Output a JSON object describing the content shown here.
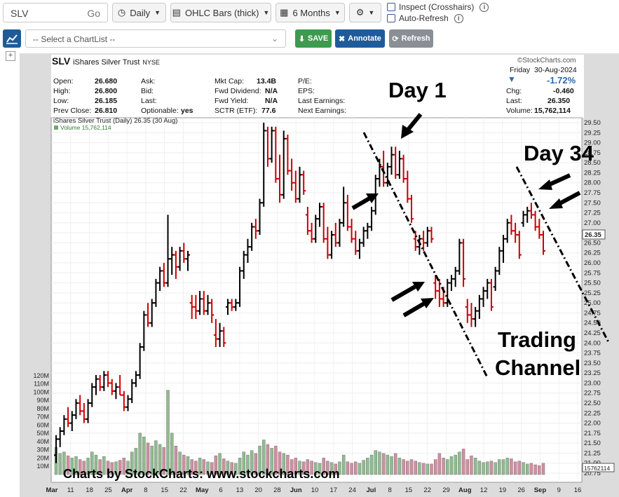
{
  "toolbar": {
    "ticker": "SLV",
    "go": "Go",
    "period": "Daily",
    "chart_type": "OHLC Bars (thick)",
    "range": "6 Months",
    "inspect": "Inspect (Crosshairs)",
    "auto_refresh": "Auto-Refresh",
    "chartlist_placeholder": "-- Select a ChartList --",
    "save": "SAVE",
    "annotate": "Annotate",
    "refresh": "Refresh"
  },
  "header": {
    "symbol": "SLV",
    "name": "iShares Silver Trust",
    "exchange": "NYSE",
    "watermark": "©StockCharts.com",
    "day": "Friday",
    "date": "30-Aug-2024",
    "pct": "-1.72%",
    "chg_label": "Chg:",
    "chg": "-0.460",
    "last_label": "Last:",
    "last": "26.350",
    "vol_label": "Volume:",
    "volume": "15,762,114",
    "open_label": "Open:",
    "open": "26.680",
    "high_label": "High:",
    "high": "26.800",
    "low_label": "Low:",
    "low": "26.185",
    "prev_label": "Prev Close:",
    "prev": "26.810",
    "ask_label": "Ask:",
    "bid_label": "Bid:",
    "lastq_label": "Last:",
    "optionable_label": "Optionable:",
    "optionable": "yes",
    "mktcap_label": "Mkt Cap:",
    "mktcap": "13.4B",
    "fwddiv_label": "Fwd Dividend:",
    "fwddiv": "N/A",
    "fwdyield_label": "Fwd Yield:",
    "fwdyield": "N/A",
    "sctr_label": "SCTR (ETF):",
    "sctr": "77.6",
    "pe_label": "P/E:",
    "eps_label": "EPS:",
    "last_earn_label": "Last Earnings:",
    "next_earn_label": "Next Earnings:",
    "legend_price": "iShares Silver Trust (Daily) 26.35 (30 Aug)",
    "legend_volume": "Volume 15,762,114",
    "credit": "Charts by StockCharts:  www.stockcharts.com"
  },
  "annotations": {
    "day1": "Day 1",
    "day34": "Day 34",
    "channel1": "Trading",
    "channel2": "Channel"
  },
  "colors": {
    "up": "#000000",
    "down": "#cc0000",
    "vol_up": "#8fbc8f",
    "vol_down": "#d08fa0",
    "accent": "#1f5b99"
  },
  "chart_data": {
    "type": "ohlc",
    "ylim": [
      20.75,
      29.5
    ],
    "y_ticks": [
      "29.50",
      "29.25",
      "29.00",
      "28.75",
      "28.50",
      "28.25",
      "28.00",
      "27.75",
      "27.50",
      "27.25",
      "27.00",
      "26.75",
      "26.50",
      "26.25",
      "26.00",
      "25.75",
      "25.50",
      "25.25",
      "25.00",
      "24.75",
      "24.50",
      "24.25",
      "24.00",
      "23.75",
      "23.50",
      "23.25",
      "23.00",
      "22.75",
      "22.50",
      "22.25",
      "22.00",
      "21.75",
      "21.50",
      "21.25",
      "21.00",
      "20.75"
    ],
    "last_label": "26.35",
    "volume_label": "15762114",
    "volume_ticks": [
      "120M",
      "110M",
      "100M",
      "90M",
      "80M",
      "70M",
      "60M",
      "50M",
      "40M",
      "30M",
      "20M",
      "10M"
    ],
    "x_ticks": [
      "Mar",
      "11",
      "18",
      "25",
      "Apr",
      "8",
      "15",
      "22",
      "May",
      "6",
      "13",
      "20",
      "28",
      "Jun",
      "10",
      "17",
      "24",
      "Jul",
      "8",
      "15",
      "22",
      "29",
      "Aug",
      "12",
      "19",
      "26",
      "Sep",
      "9",
      "16"
    ],
    "x_tick_bold": [
      "Mar",
      "Apr",
      "May",
      "Jun",
      "Jul",
      "Aug",
      "Sep"
    ],
    "ohlc": [
      [
        21.2,
        21.7,
        21.0,
        21.6,
        36
      ],
      [
        21.6,
        21.9,
        21.4,
        21.8,
        28
      ],
      [
        21.8,
        22.2,
        21.7,
        22.1,
        30
      ],
      [
        22.1,
        22.4,
        21.9,
        22.0,
        25
      ],
      [
        22.0,
        22.3,
        21.8,
        22.2,
        22
      ],
      [
        22.2,
        22.6,
        22.1,
        22.5,
        24
      ],
      [
        22.5,
        22.7,
        22.2,
        22.3,
        20
      ],
      [
        22.3,
        22.5,
        22.0,
        22.1,
        18
      ],
      [
        22.1,
        22.6,
        22.0,
        22.5,
        22
      ],
      [
        22.5,
        23.0,
        22.4,
        22.9,
        30
      ],
      [
        22.9,
        23.2,
        22.7,
        23.1,
        26
      ],
      [
        23.1,
        23.2,
        22.8,
        22.9,
        20
      ],
      [
        22.9,
        23.3,
        22.8,
        23.2,
        24
      ],
      [
        23.2,
        23.3,
        22.9,
        23.0,
        18
      ],
      [
        23.0,
        23.1,
        22.7,
        22.8,
        16
      ],
      [
        22.8,
        23.0,
        22.6,
        22.9,
        17
      ],
      [
        22.9,
        23.2,
        22.7,
        22.7,
        19
      ],
      [
        22.7,
        22.8,
        22.3,
        22.4,
        22
      ],
      [
        22.4,
        22.7,
        22.3,
        22.6,
        18
      ],
      [
        22.6,
        23.1,
        22.5,
        23.0,
        30
      ],
      [
        23.0,
        23.3,
        22.9,
        23.2,
        35
      ],
      [
        23.2,
        24.0,
        23.1,
        23.9,
        55
      ],
      [
        23.9,
        24.8,
        23.8,
        24.7,
        50
      ],
      [
        24.7,
        25.0,
        24.4,
        24.5,
        42
      ],
      [
        24.5,
        25.1,
        24.4,
        25.0,
        38
      ],
      [
        25.0,
        25.6,
        24.9,
        25.5,
        45
      ],
      [
        25.5,
        25.9,
        25.3,
        25.8,
        40
      ],
      [
        25.8,
        26.0,
        25.4,
        25.5,
        36
      ],
      [
        25.5,
        27.2,
        25.4,
        26.1,
        112
      ],
      [
        26.1,
        26.4,
        25.7,
        26.2,
        55
      ],
      [
        26.2,
        26.3,
        25.6,
        25.9,
        38
      ],
      [
        25.9,
        26.4,
        25.8,
        26.3,
        30
      ],
      [
        26.3,
        26.5,
        26.0,
        26.1,
        26
      ],
      [
        26.1,
        26.3,
        25.8,
        26.2,
        24
      ],
      [
        25.0,
        25.2,
        24.6,
        24.9,
        20
      ],
      [
        24.9,
        25.2,
        24.6,
        24.8,
        18
      ],
      [
        24.8,
        25.3,
        24.7,
        25.1,
        22
      ],
      [
        25.1,
        25.3,
        24.7,
        24.8,
        20
      ],
      [
        24.8,
        25.2,
        24.7,
        25.0,
        17
      ],
      [
        25.0,
        25.1,
        24.5,
        24.7,
        16
      ],
      [
        24.2,
        24.6,
        23.9,
        24.1,
        25
      ],
      [
        24.1,
        24.5,
        23.9,
        24.3,
        28
      ],
      [
        24.3,
        24.4,
        23.9,
        24.0,
        21
      ],
      [
        24.9,
        25.1,
        24.7,
        25.0,
        18
      ],
      [
        25.0,
        25.1,
        24.8,
        24.9,
        16
      ],
      [
        24.9,
        25.1,
        24.8,
        25.0,
        15
      ],
      [
        25.0,
        25.9,
        24.9,
        25.8,
        22
      ],
      [
        25.8,
        26.3,
        25.6,
        26.2,
        30
      ],
      [
        26.2,
        26.6,
        26.0,
        26.4,
        26
      ],
      [
        26.4,
        27.0,
        26.3,
        26.9,
        32
      ],
      [
        26.9,
        27.1,
        26.6,
        26.8,
        28
      ],
      [
        26.8,
        27.6,
        26.7,
        27.5,
        38
      ],
      [
        27.5,
        29.5,
        27.4,
        29.3,
        46
      ],
      [
        29.3,
        29.4,
        28.4,
        28.6,
        40
      ],
      [
        28.6,
        29.4,
        28.5,
        29.3,
        35
      ],
      [
        29.3,
        29.4,
        28.0,
        28.1,
        38
      ],
      [
        28.1,
        28.7,
        27.5,
        27.7,
        30
      ],
      [
        27.7,
        29.3,
        27.6,
        29.1,
        28
      ],
      [
        29.1,
        29.2,
        28.2,
        28.3,
        26
      ],
      [
        28.3,
        28.6,
        27.8,
        28.0,
        20
      ],
      [
        28.0,
        28.3,
        27.5,
        27.6,
        22
      ],
      [
        27.6,
        28.4,
        27.5,
        28.2,
        18
      ],
      [
        28.2,
        28.3,
        27.7,
        27.8,
        17
      ],
      [
        27.2,
        27.4,
        26.7,
        26.8,
        20
      ],
      [
        26.8,
        27.0,
        26.5,
        26.6,
        18
      ],
      [
        26.6,
        27.2,
        26.5,
        27.1,
        16
      ],
      [
        27.1,
        27.5,
        26.9,
        27.4,
        15
      ],
      [
        27.4,
        27.5,
        26.5,
        26.6,
        22
      ],
      [
        26.6,
        26.9,
        26.1,
        26.2,
        18
      ],
      [
        26.2,
        26.8,
        26.1,
        26.7,
        16
      ],
      [
        26.7,
        27.0,
        26.4,
        26.5,
        14
      ],
      [
        26.5,
        27.1,
        26.4,
        27.0,
        17
      ],
      [
        27.0,
        27.9,
        26.9,
        27.5,
        26
      ],
      [
        27.5,
        27.7,
        26.8,
        26.9,
        17
      ],
      [
        26.9,
        27.1,
        26.5,
        26.6,
        15
      ],
      [
        26.6,
        26.8,
        26.2,
        26.3,
        17
      ],
      [
        26.3,
        26.6,
        26.1,
        26.5,
        15
      ],
      [
        26.5,
        26.9,
        26.4,
        26.8,
        19
      ],
      [
        26.8,
        27.0,
        26.6,
        26.9,
        22
      ],
      [
        26.9,
        27.4,
        26.8,
        27.3,
        26
      ],
      [
        27.3,
        28.2,
        27.2,
        28.1,
        32
      ],
      [
        28.1,
        28.6,
        27.9,
        28.4,
        30
      ],
      [
        28.4,
        28.8,
        27.9,
        28.0,
        28
      ],
      [
        28.0,
        28.5,
        27.9,
        28.4,
        26
      ],
      [
        28.4,
        28.9,
        28.2,
        28.7,
        24
      ],
      [
        28.7,
        28.9,
        28.1,
        28.2,
        28
      ],
      [
        28.2,
        28.8,
        28.1,
        28.6,
        22
      ],
      [
        28.6,
        28.7,
        28.0,
        28.1,
        20
      ],
      [
        28.1,
        28.3,
        27.5,
        27.6,
        18
      ],
      [
        27.6,
        27.7,
        27.0,
        27.1,
        20
      ],
      [
        26.6,
        26.8,
        26.3,
        26.4,
        18
      ],
      [
        26.4,
        26.7,
        26.2,
        26.6,
        16
      ],
      [
        26.6,
        26.8,
        26.3,
        26.5,
        15
      ],
      [
        26.5,
        26.9,
        26.4,
        26.8,
        14
      ],
      [
        26.8,
        26.9,
        26.5,
        26.6,
        14
      ],
      [
        25.5,
        25.7,
        25.1,
        25.3,
        20
      ],
      [
        25.3,
        25.6,
        24.9,
        25.1,
        28
      ],
      [
        25.1,
        25.4,
        24.9,
        25.0,
        22
      ],
      [
        25.0,
        25.6,
        24.9,
        25.5,
        20
      ],
      [
        25.5,
        25.7,
        25.3,
        25.6,
        24
      ],
      [
        25.6,
        25.9,
        25.4,
        25.8,
        26
      ],
      [
        25.8,
        26.6,
        25.7,
        26.5,
        30
      ],
      [
        26.5,
        26.6,
        25.4,
        25.6,
        34
      ],
      [
        24.9,
        25.1,
        24.5,
        24.7,
        20
      ],
      [
        24.7,
        25.0,
        24.4,
        24.6,
        25
      ],
      [
        24.6,
        24.9,
        24.4,
        24.8,
        22
      ],
      [
        24.8,
        25.2,
        24.6,
        25.1,
        18
      ],
      [
        25.1,
        25.4,
        24.9,
        25.3,
        16
      ],
      [
        25.3,
        25.6,
        25.1,
        25.5,
        17
      ],
      [
        25.5,
        25.6,
        24.8,
        24.9,
        18
      ],
      [
        25.4,
        25.9,
        25.3,
        25.8,
        16
      ],
      [
        25.8,
        26.4,
        25.7,
        26.3,
        20
      ],
      [
        26.3,
        26.7,
        26.0,
        26.6,
        20
      ],
      [
        26.6,
        27.1,
        26.5,
        27.0,
        22
      ],
      [
        27.0,
        27.2,
        26.7,
        26.8,
        21
      ],
      [
        26.8,
        27.0,
        26.5,
        26.7,
        17
      ],
      [
        26.7,
        26.8,
        26.1,
        26.2,
        18
      ],
      [
        27.0,
        27.3,
        26.9,
        27.2,
        16
      ],
      [
        27.2,
        27.4,
        27.0,
        27.3,
        14
      ],
      [
        27.3,
        27.5,
        27.1,
        27.2,
        15
      ],
      [
        27.2,
        27.3,
        26.8,
        26.9,
        13
      ],
      [
        26.9,
        27.1,
        26.6,
        26.7,
        12
      ],
      [
        26.7,
        26.8,
        26.2,
        26.3,
        15
      ]
    ],
    "trendlines": [
      {
        "name": "channel-upper",
        "points": [
          [
            519,
            189
          ],
          [
            695,
            538
          ]
        ]
      },
      {
        "name": "channel-lower",
        "points": [
          [
            737,
            238
          ],
          [
            868,
            488
          ]
        ]
      }
    ]
  }
}
